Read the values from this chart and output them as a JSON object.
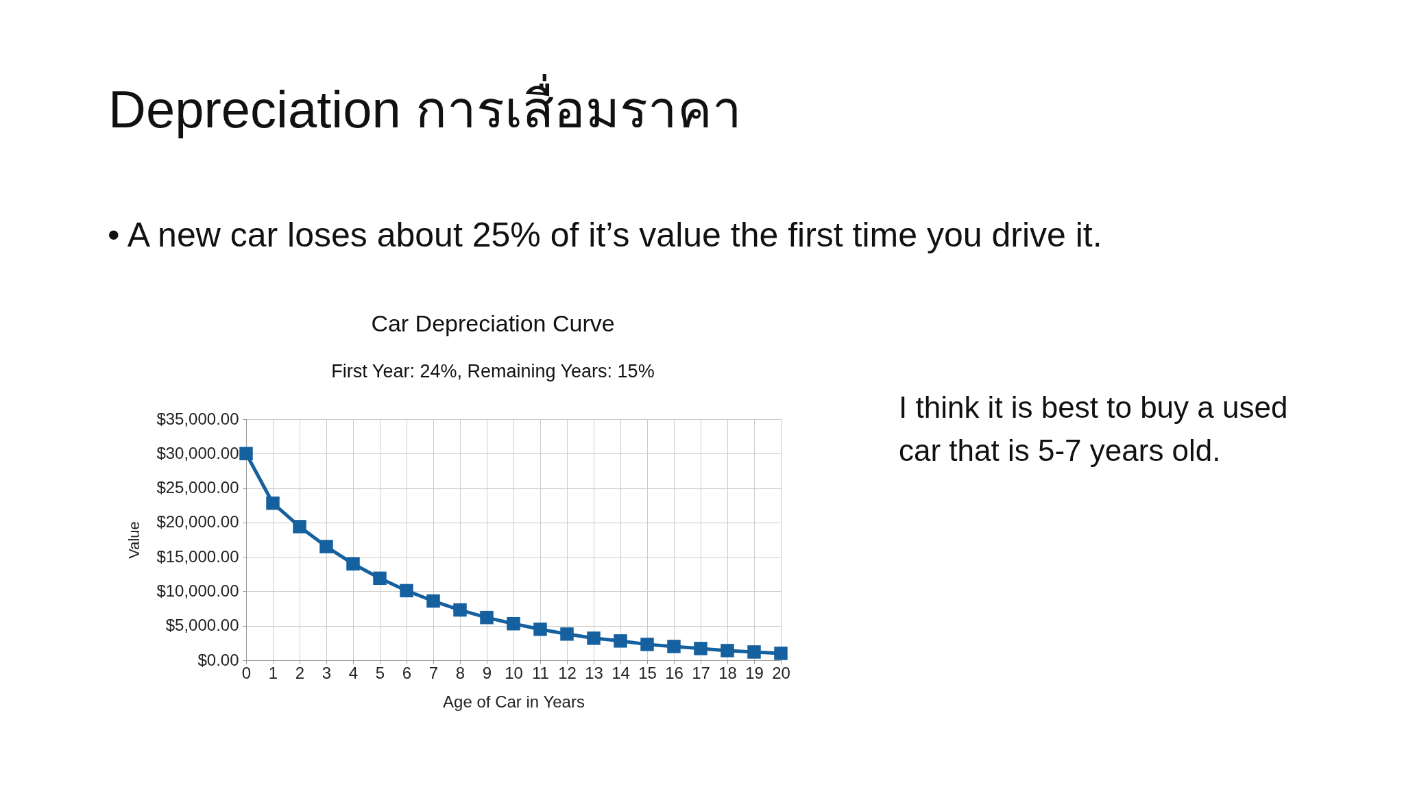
{
  "chart_data": {
    "type": "line",
    "title": "Car Depreciation Curve",
    "subtitle": "First Year: 24%, Remaining Years: 15%",
    "xlabel": "Age of Car in Years",
    "ylabel": "Value",
    "x": [
      0,
      1,
      2,
      3,
      4,
      5,
      6,
      7,
      8,
      9,
      10,
      11,
      12,
      13,
      14,
      15,
      16,
      17,
      18,
      19,
      20
    ],
    "series": [
      {
        "color": "#15609e",
        "values": [
          30000,
          22800,
          19400,
          16500,
          14000,
          11900,
          10100,
          8600,
          7300,
          6200,
          5300,
          4500,
          3800,
          3200,
          2800,
          2300,
          2000,
          1700,
          1400,
          1200,
          1000
        ]
      }
    ],
    "xlim": [
      0,
      20
    ],
    "xticks": [
      0,
      1,
      2,
      3,
      4,
      5,
      6,
      7,
      8,
      9,
      10,
      11,
      12,
      13,
      14,
      15,
      16,
      17,
      18,
      19,
      20
    ],
    "ylim": [
      0,
      35000
    ],
    "yticks": [
      {
        "value": 0,
        "label": "$0.00"
      },
      {
        "value": 5000,
        "label": "$5,000.00"
      },
      {
        "value": 10000,
        "label": "$10,000.00"
      },
      {
        "value": 15000,
        "label": "$15,000.00"
      },
      {
        "value": 20000,
        "label": "$20,000.00"
      },
      {
        "value": 25000,
        "label": "$25,000.00"
      },
      {
        "value": 30000,
        "label": "$30,000.00"
      },
      {
        "value": 35000,
        "label": "$35,000.00"
      }
    ],
    "grid": true,
    "marker": "square",
    "line_style": "solid",
    "annotations": [
      "Depreciation  การเสื่อมราคา",
      "• A new car loses about 25% of it’s value the first time you drive it.",
      "I think it is best to buy a used car that is 5-7 years old."
    ]
  }
}
